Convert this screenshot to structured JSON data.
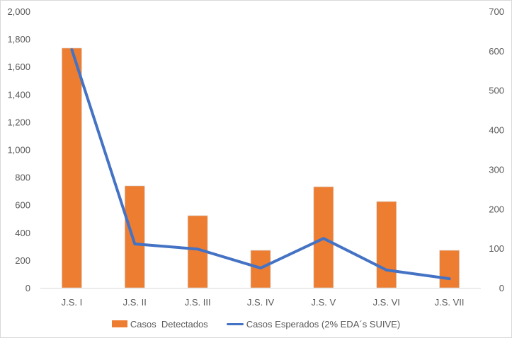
{
  "chart_data": {
    "type": "bar",
    "title": "",
    "xlabel": "",
    "ylabel": "",
    "categories": [
      "J.S. I",
      "J.S. II",
      "J.S. III",
      "J.S. IV",
      "J.S. V",
      "J.S. VI",
      "J.S. VII"
    ],
    "ylim": [
      0,
      2000
    ],
    "y2lim": [
      0,
      700
    ],
    "left_ticks": [
      "0",
      "200",
      "400",
      "600",
      "800",
      "1,000",
      "1,200",
      "1,400",
      "1,600",
      "1,800",
      "2,000"
    ],
    "left_tick_values": [
      0,
      200,
      400,
      600,
      800,
      1000,
      1200,
      1400,
      1600,
      1800,
      2000
    ],
    "right_ticks": [
      "0",
      "100",
      "200",
      "300",
      "400",
      "500",
      "600",
      "700"
    ],
    "right_tick_values": [
      0,
      100,
      200,
      300,
      400,
      500,
      600,
      700
    ],
    "grid": false,
    "legend_position": "bottom",
    "series": [
      {
        "name": "Casos  Detectados",
        "type": "bar",
        "axis": "left",
        "color": "#ED7D31",
        "values": [
          1734,
          737,
          522,
          271,
          731,
          624,
          271
        ]
      },
      {
        "name": "Casos Esperados (2% EDA´s SUIVE)",
        "type": "line",
        "axis": "right",
        "color": "#4472C4",
        "values": [
          603,
          111,
          98,
          50,
          125,
          45,
          23
        ]
      }
    ]
  }
}
